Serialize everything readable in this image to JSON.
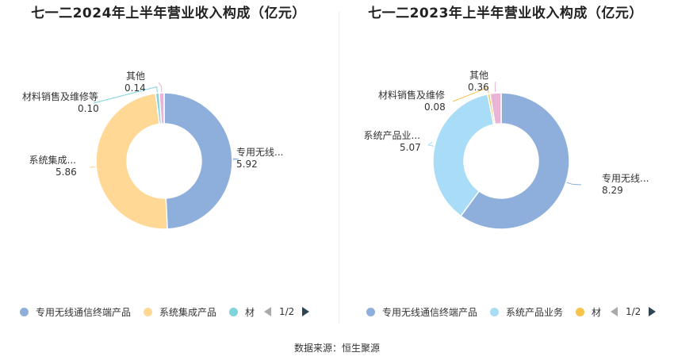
{
  "source": "数据来源：恒生聚源",
  "chart_data": [
    {
      "type": "pie",
      "title": "七一二2024年上半年营业收入构成（亿元）",
      "slices": [
        {
          "name": "专用无线通信终端产品",
          "label": "专用无线...",
          "value": 5.92,
          "value_text": "5.92",
          "color": "#8eafdc"
        },
        {
          "name": "系统集成产品",
          "label": "系统集成...",
          "value": 5.86,
          "value_text": "5.86",
          "color": "#ffd896"
        },
        {
          "name": "材料销售及维修等",
          "label": "材料销售及维修等",
          "value": 0.1,
          "value_text": "0.10",
          "color": "#7fd4dd"
        },
        {
          "name": "其他",
          "label": "其他",
          "value": 0.14,
          "value_text": "0.14",
          "color": "#e9b5d6"
        }
      ],
      "legend": {
        "items": [
          "专用无线通信终端产品",
          "系统集成产品",
          "材"
        ],
        "page": "1/2"
      }
    },
    {
      "type": "pie",
      "title": "七一二2023年上半年营业收入构成（亿元）",
      "slices": [
        {
          "name": "专用无线通信终端产品",
          "label": "专用无线...",
          "value": 8.29,
          "value_text": "8.29",
          "color": "#8eafdc"
        },
        {
          "name": "系统产品业务",
          "label": "系统产品业...",
          "value": 5.07,
          "value_text": "5.07",
          "color": "#a8dcf7"
        },
        {
          "name": "材料销售及维修",
          "label": "材料销售及维修",
          "value": 0.08,
          "value_text": "0.08",
          "color": "#f7c34b"
        },
        {
          "name": "其他",
          "label": "其他",
          "value": 0.36,
          "value_text": "0.36",
          "color": "#e9b5d6"
        }
      ],
      "legend": {
        "items": [
          "专用无线通信终端产品",
          "系统产品业务",
          "材"
        ],
        "page": "1/2"
      }
    }
  ]
}
